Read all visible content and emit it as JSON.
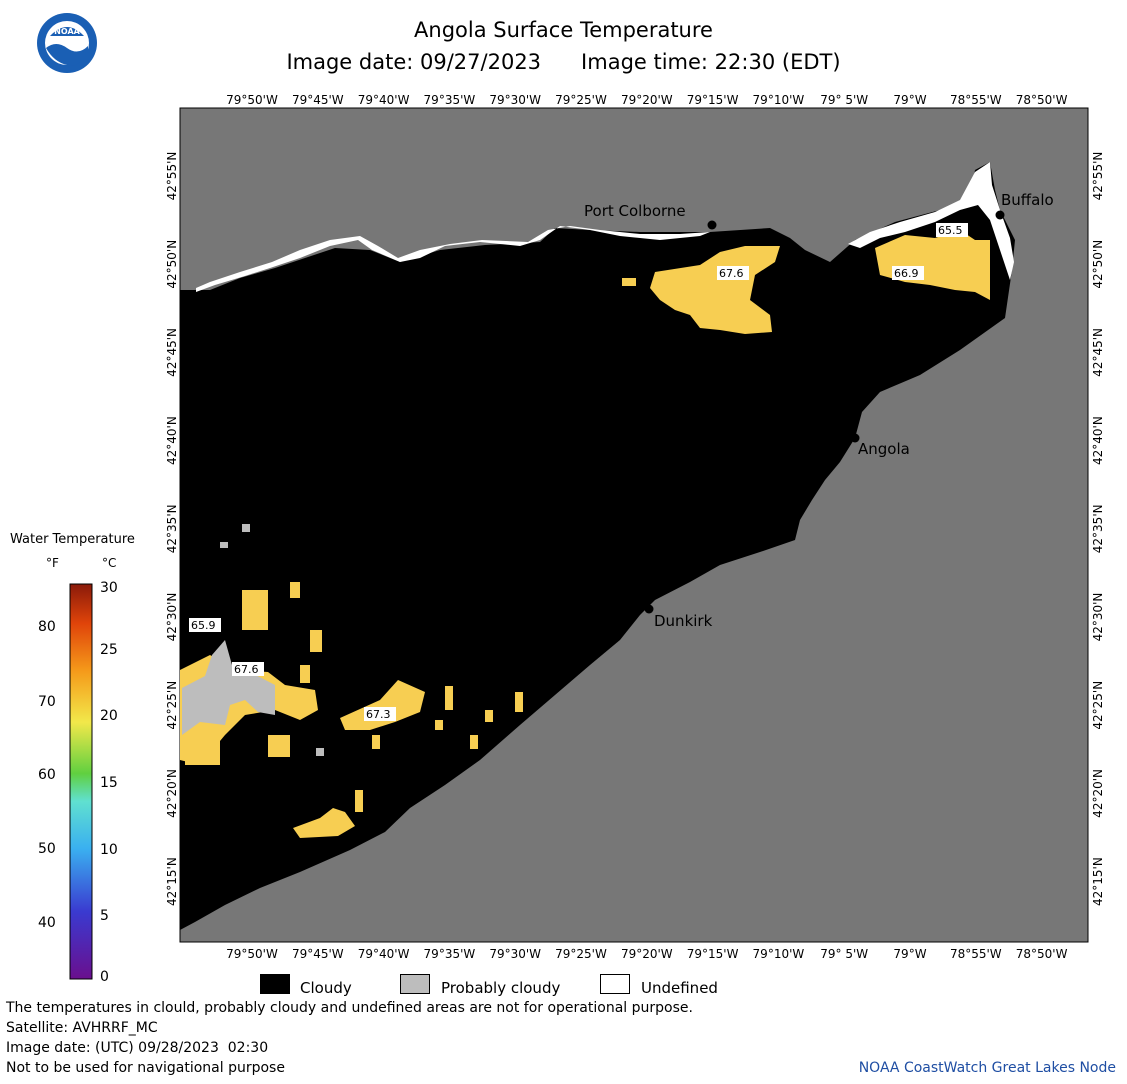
{
  "header": {
    "title": "Angola Surface Temperature",
    "image_date_label": "Image date: 09/27/2023",
    "image_time_label": "Image time: 22:30 (EDT)"
  },
  "logo": {
    "text": "NOAA",
    "colors": {
      "outer": "#1a5fb4",
      "inner": "#ffffff"
    }
  },
  "map": {
    "lon_ticks": [
      "79°50'W",
      "79°45'W",
      "79°40'W",
      "79°35'W",
      "79°30'W",
      "79°25'W",
      "79°20'W",
      "79°15'W",
      "79°10'W",
      "79° 5'W",
      "79°W",
      "78°55'W",
      "78°50'W"
    ],
    "lat_ticks": [
      "42°55'N",
      "42°50'N",
      "42°45'N",
      "42°40'N",
      "42°35'N",
      "42°30'N",
      "42°25'N",
      "42°20'N",
      "42°15'N"
    ],
    "cities": {
      "port_colborne": "Port Colborne",
      "buffalo": "Buffalo",
      "angola": "Angola",
      "dunkirk": "Dunkirk"
    },
    "temperature_labels": {
      "t1": "67.6",
      "t2": "65.5",
      "t3": "66.9",
      "t4": "65.9",
      "t5": "67.6",
      "t6": "67.3"
    },
    "colors": {
      "land": "#777777",
      "cloud": "#000000",
      "undefined": "#ffffff",
      "warm_water": "#f7ce52",
      "probably_cloudy": "#bdbdbd"
    }
  },
  "legend": {
    "title": "Water Temperature",
    "unit_f": "°F",
    "unit_c": "°C",
    "f_ticks": [
      "80",
      "70",
      "60",
      "50",
      "40"
    ],
    "c_ticks": [
      "30",
      "25",
      "20",
      "15",
      "10",
      "5",
      "0"
    ]
  },
  "key": {
    "cloudy": "Cloudy",
    "probably_cloudy": "Probably cloudy",
    "undefined": "Undefined"
  },
  "footer": {
    "line1": "The temperatures in clould, probably cloudy and undefined areas are not for operational purpose.",
    "line2": "Satellite: AVHRRF_MC",
    "line3": "Image date: (UTC) 09/28/2023  02:30",
    "line4": "Not to be used for navigational purpose",
    "credit": "NOAA CoastWatch Great Lakes Node"
  }
}
